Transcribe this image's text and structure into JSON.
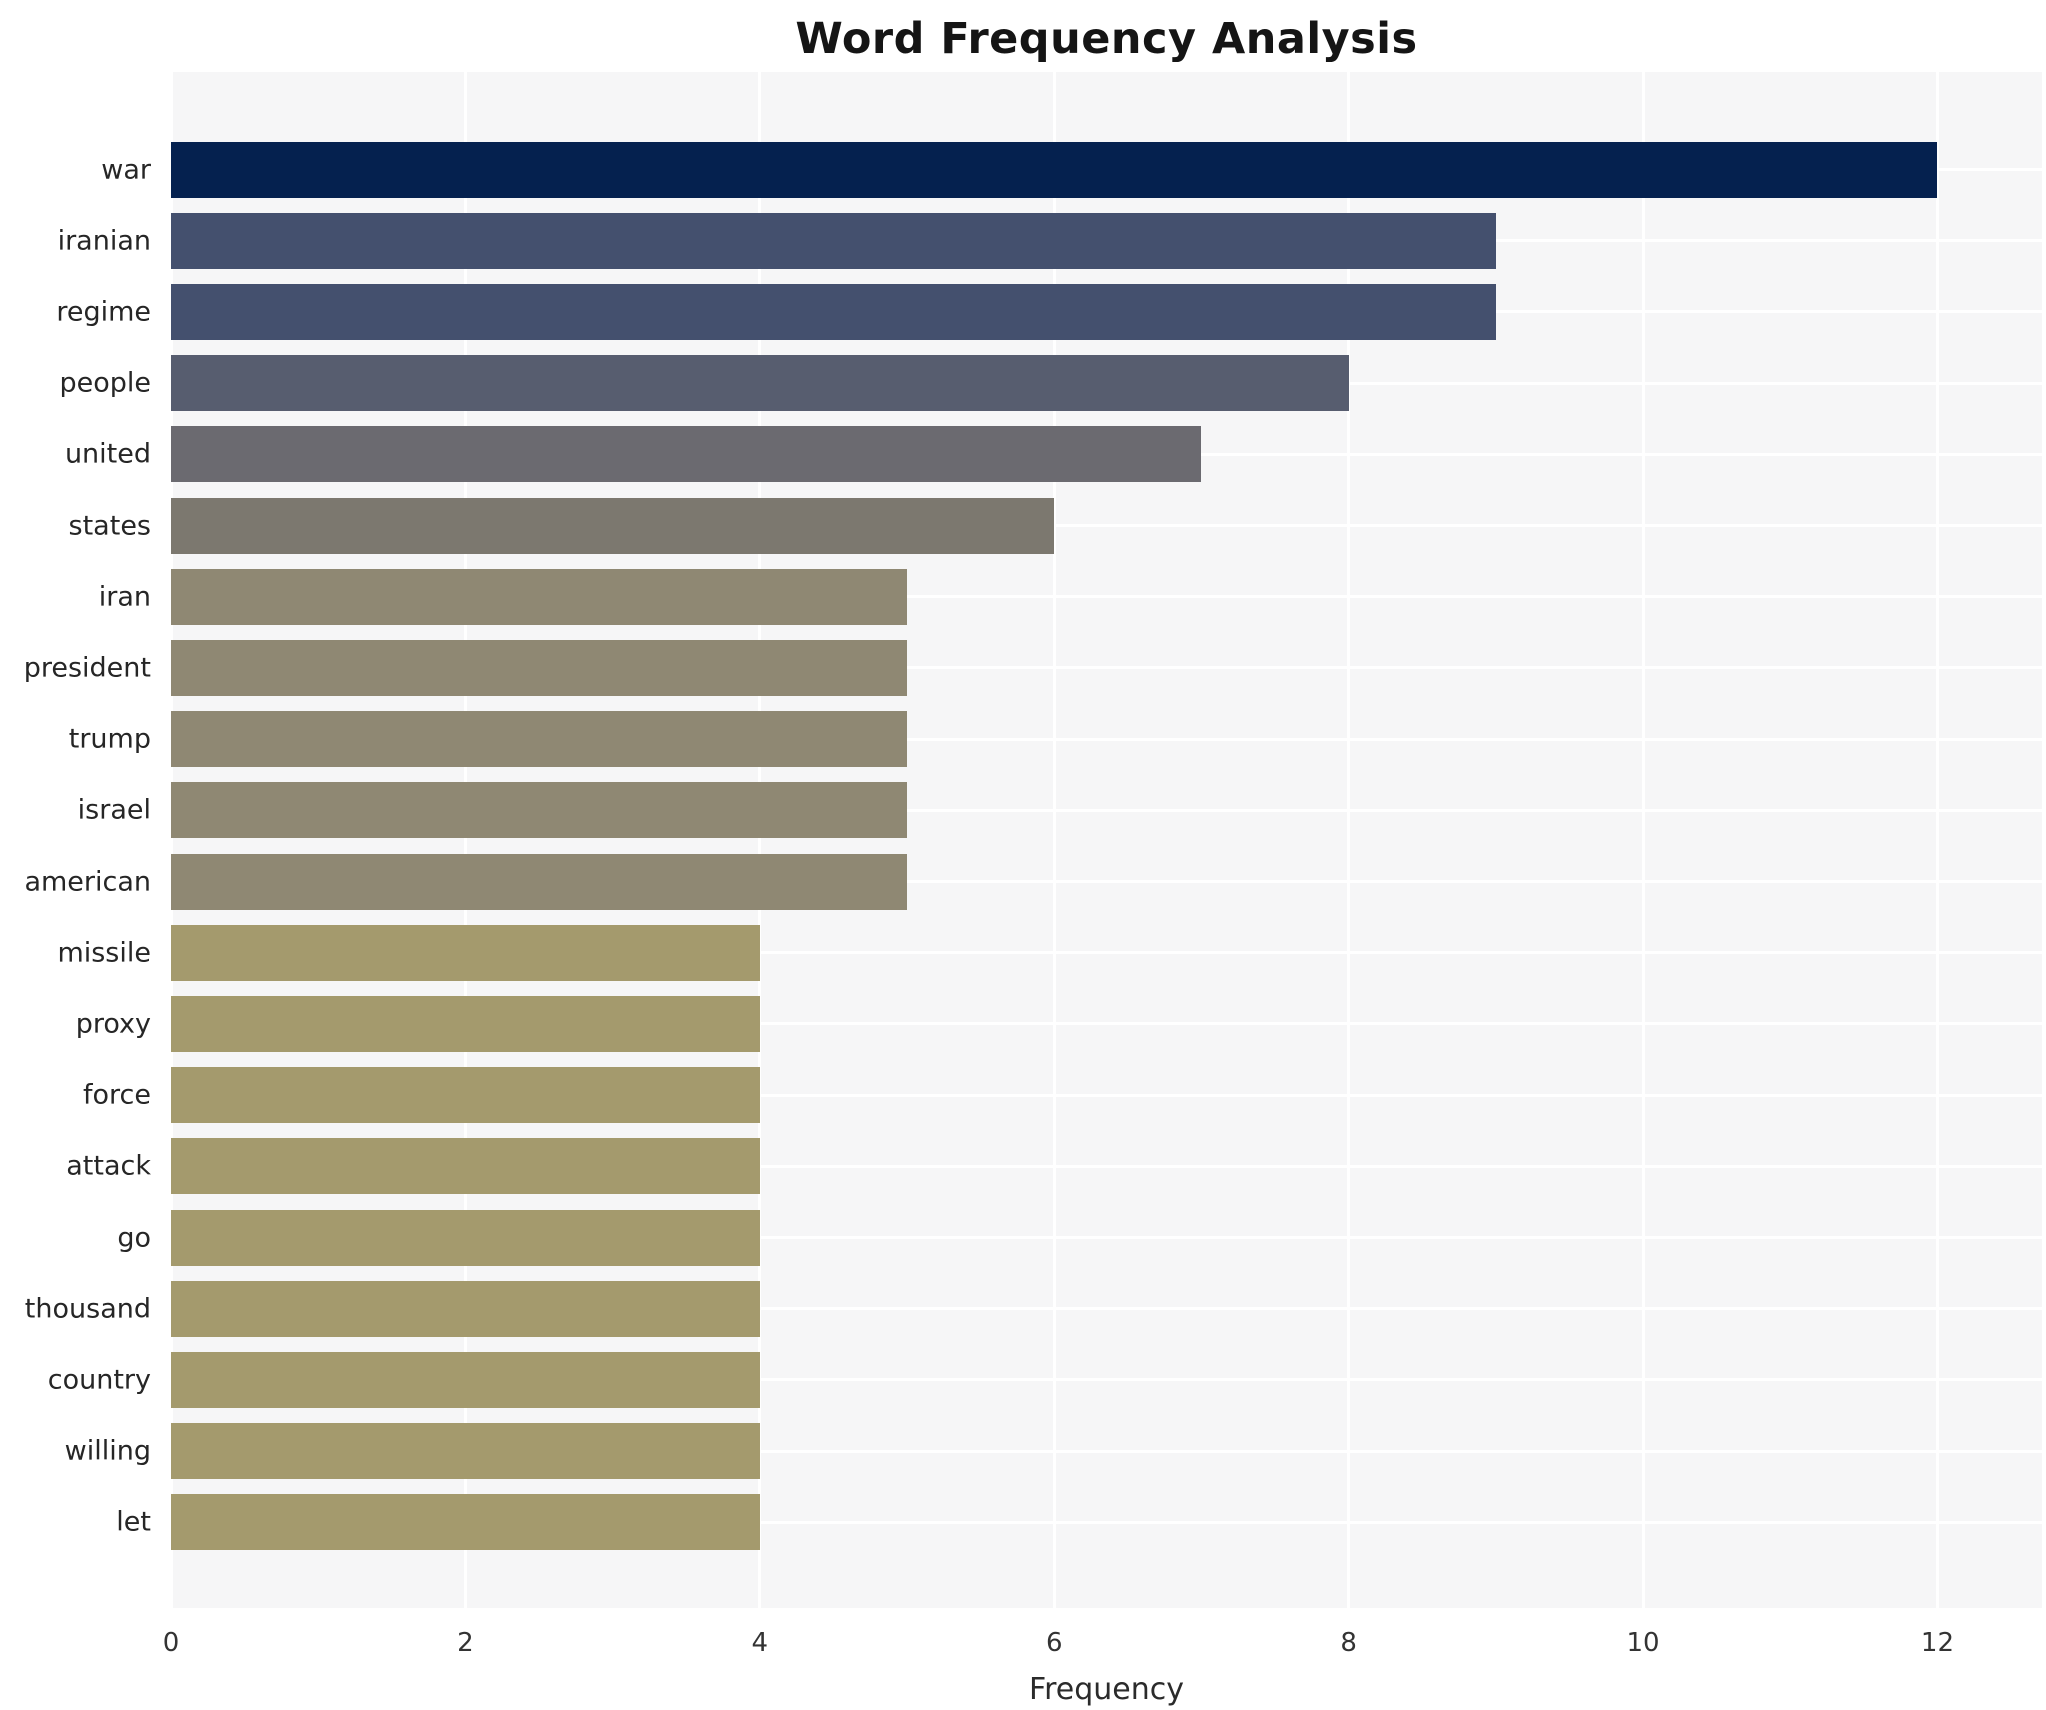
{
  "title": "Word Frequency Analysis",
  "chart_data": {
    "type": "bar",
    "orientation": "horizontal",
    "title": "Word Frequency Analysis",
    "xlabel": "Frequency",
    "ylabel": "",
    "categories": [
      "war",
      "iranian",
      "regime",
      "people",
      "united",
      "states",
      "iran",
      "president",
      "trump",
      "israel",
      "american",
      "missile",
      "proxy",
      "force",
      "attack",
      "go",
      "thousand",
      "country",
      "willing",
      "let"
    ],
    "values": [
      12,
      9,
      9,
      8,
      7,
      6,
      5,
      5,
      5,
      5,
      5,
      4,
      4,
      4,
      4,
      4,
      4,
      4,
      4,
      4
    ],
    "bar_colors": [
      "#05214f",
      "#44506e",
      "#44506e",
      "#575d6f",
      "#6b6a70",
      "#7c786f",
      "#8f8873",
      "#8f8873",
      "#8f8873",
      "#8f8873",
      "#8f8873",
      "#a49a6d",
      "#a49a6d",
      "#a49a6d",
      "#a49a6d",
      "#a49a6d",
      "#a49a6d",
      "#a49a6d",
      "#a49a6d",
      "#a49a6d"
    ],
    "xticks": [
      0,
      2,
      4,
      6,
      8,
      10,
      12
    ],
    "xlim": [
      0,
      12.71
    ],
    "grid": "on",
    "gridline_color": "#ffffff",
    "plot_background_color": "#f6f6f7",
    "figure_background_color": "#ffffff",
    "legend_position": "none"
  }
}
